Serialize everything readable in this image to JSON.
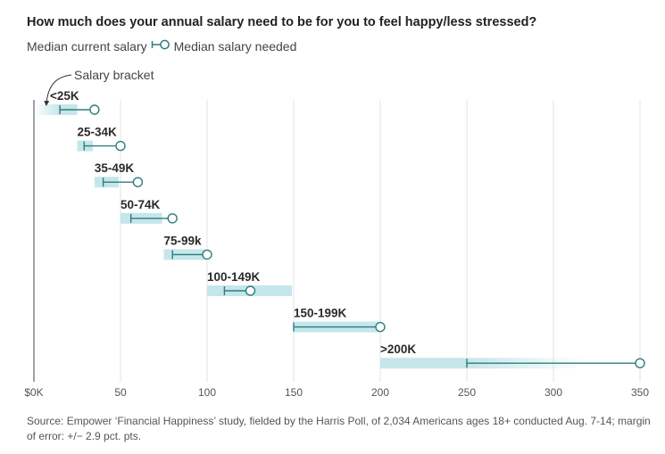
{
  "title": "How much does your annual salary need to be for you to feel happy/less stressed?",
  "legend": {
    "current": "Median current salary",
    "needed": "Median salary needed"
  },
  "annotation": "Salary bracket",
  "source": "Source: Empower ‘Financial Happiness’ study, fielded by the Harris Poll, of 2,034 Americans ages 18+ conducted Aug. 7-14; margin of error: +/− 2.9 pct. pts.",
  "colors": {
    "bracket_band": "#c5e6ea",
    "line": "#2e7d7d",
    "grid": "#e3e3e3",
    "axis": "#444444"
  },
  "chart_data": {
    "type": "dumbbell",
    "title": "How much does your annual salary need to be for you to feel happy/less stressed?",
    "xlabel": "",
    "unit": "thousand USD",
    "xlim": [
      0,
      350
    ],
    "x_ticks": [
      0,
      50,
      100,
      150,
      200,
      250,
      300,
      350
    ],
    "x_tick_labels": [
      "$0K",
      "50",
      "100",
      "150",
      "200",
      "250",
      "300",
      "350"
    ],
    "grid": true,
    "series": [
      {
        "name": "Median current salary",
        "marker": "tick"
      },
      {
        "name": "Median salary needed",
        "marker": "open-circle"
      }
    ],
    "rows": [
      {
        "label": "<25K",
        "bracket": [
          0,
          25
        ],
        "current": 15,
        "needed": 35,
        "fade": "left"
      },
      {
        "label": "25-34K",
        "bracket": [
          25,
          34
        ],
        "current": 29,
        "needed": 50
      },
      {
        "label": "35-49K",
        "bracket": [
          35,
          49
        ],
        "current": 40,
        "needed": 60
      },
      {
        "label": "50-74K",
        "bracket": [
          50,
          74
        ],
        "current": 56,
        "needed": 80
      },
      {
        "label": "75-99k",
        "bracket": [
          75,
          99
        ],
        "current": 80,
        "needed": 100
      },
      {
        "label": "100-149K",
        "bracket": [
          100,
          149
        ],
        "current": 110,
        "needed": 125
      },
      {
        "label": "150-199K",
        "bracket": [
          150,
          199
        ],
        "current": 150,
        "needed": 200
      },
      {
        "label": ">200K",
        "bracket": [
          200,
          320
        ],
        "current": 250,
        "needed": 350,
        "fade": "right"
      }
    ]
  }
}
